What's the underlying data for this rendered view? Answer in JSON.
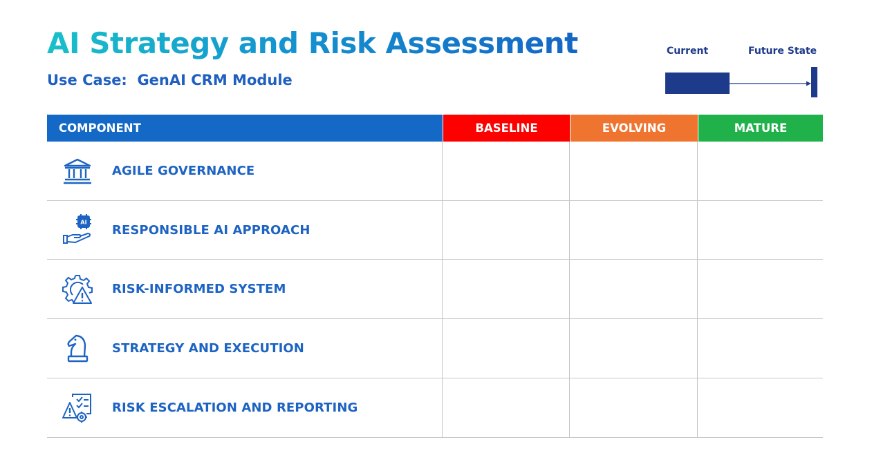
{
  "header": {
    "title": "AI Strategy and Risk Assessment",
    "subtitle": "Use Case:  GenAI CRM Module"
  },
  "legend": {
    "current_label": "Current",
    "future_label": "Future State",
    "current_color": "#1e3a8a",
    "future_color": "#1e3a8a"
  },
  "table": {
    "columns": {
      "component": "COMPONENT",
      "baseline": "BASELINE",
      "evolving": "EVOLVING",
      "mature": "MATURE"
    },
    "column_colors": {
      "component": "#1469c6",
      "baseline": "#fd0000",
      "evolving": "#ef7430",
      "mature": "#20b14a"
    },
    "rows": [
      {
        "label": "AGILE GOVERNANCE",
        "icon": "government-building-icon"
      },
      {
        "label": "RESPONSIBLE AI APPROACH",
        "icon": "ai-chip-hand-icon"
      },
      {
        "label": "RISK-INFORMED SYSTEM",
        "icon": "gear-warning-icon"
      },
      {
        "label": "STRATEGY AND EXECUTION",
        "icon": "chess-knight-icon"
      },
      {
        "label": "RISK ESCALATION AND REPORTING",
        "icon": "report-warning-icon"
      }
    ]
  }
}
